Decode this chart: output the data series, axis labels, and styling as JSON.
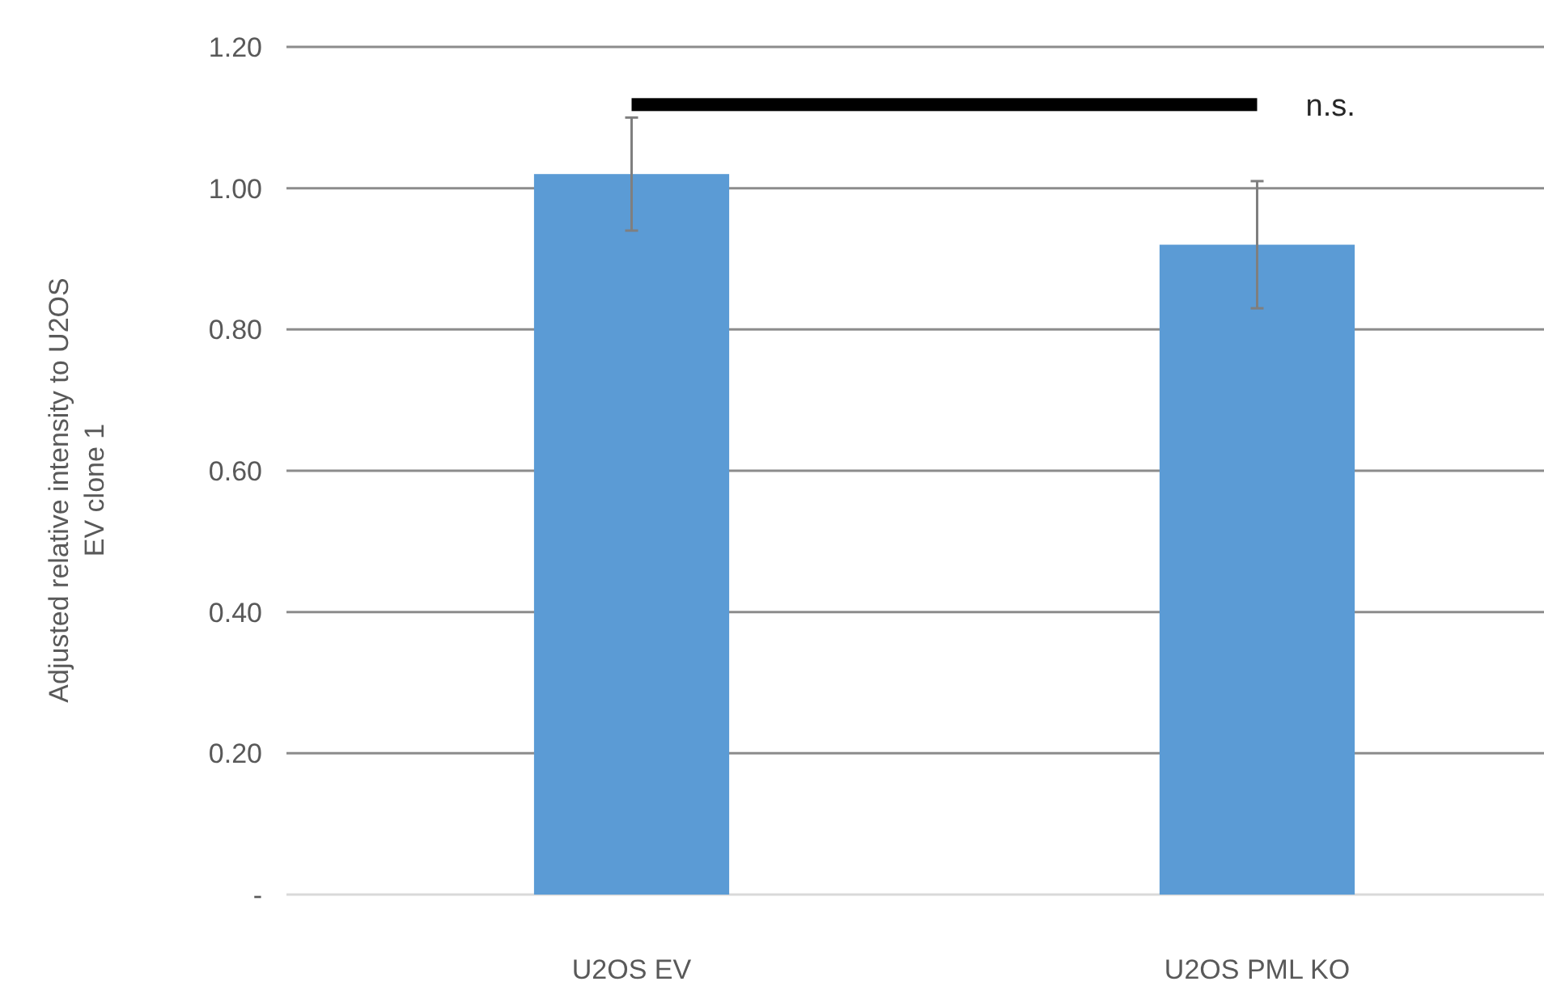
{
  "chart_data": {
    "type": "bar",
    "ylabel": "Adjusted relative intensity to U2OS EV clone 1",
    "categories": [
      "U2OS EV",
      "U2OS PML KO"
    ],
    "values": [
      1.02,
      0.92
    ],
    "errors": [
      0.08,
      0.09
    ],
    "color": "#5b9bd5",
    "ylim": [
      0,
      1.2
    ],
    "yticks": [
      {
        "value": 0,
        "label": "-"
      },
      {
        "value": 0.2,
        "label": "0.20"
      },
      {
        "value": 0.4,
        "label": "0.40"
      },
      {
        "value": 0.6,
        "label": "0.60"
      },
      {
        "value": 0.8,
        "label": "0.80"
      },
      {
        "value": 1.0,
        "label": "1.00"
      },
      {
        "value": 1.2,
        "label": "1.20"
      }
    ],
    "grid": "y",
    "annotations": [
      "n.s."
    ]
  }
}
